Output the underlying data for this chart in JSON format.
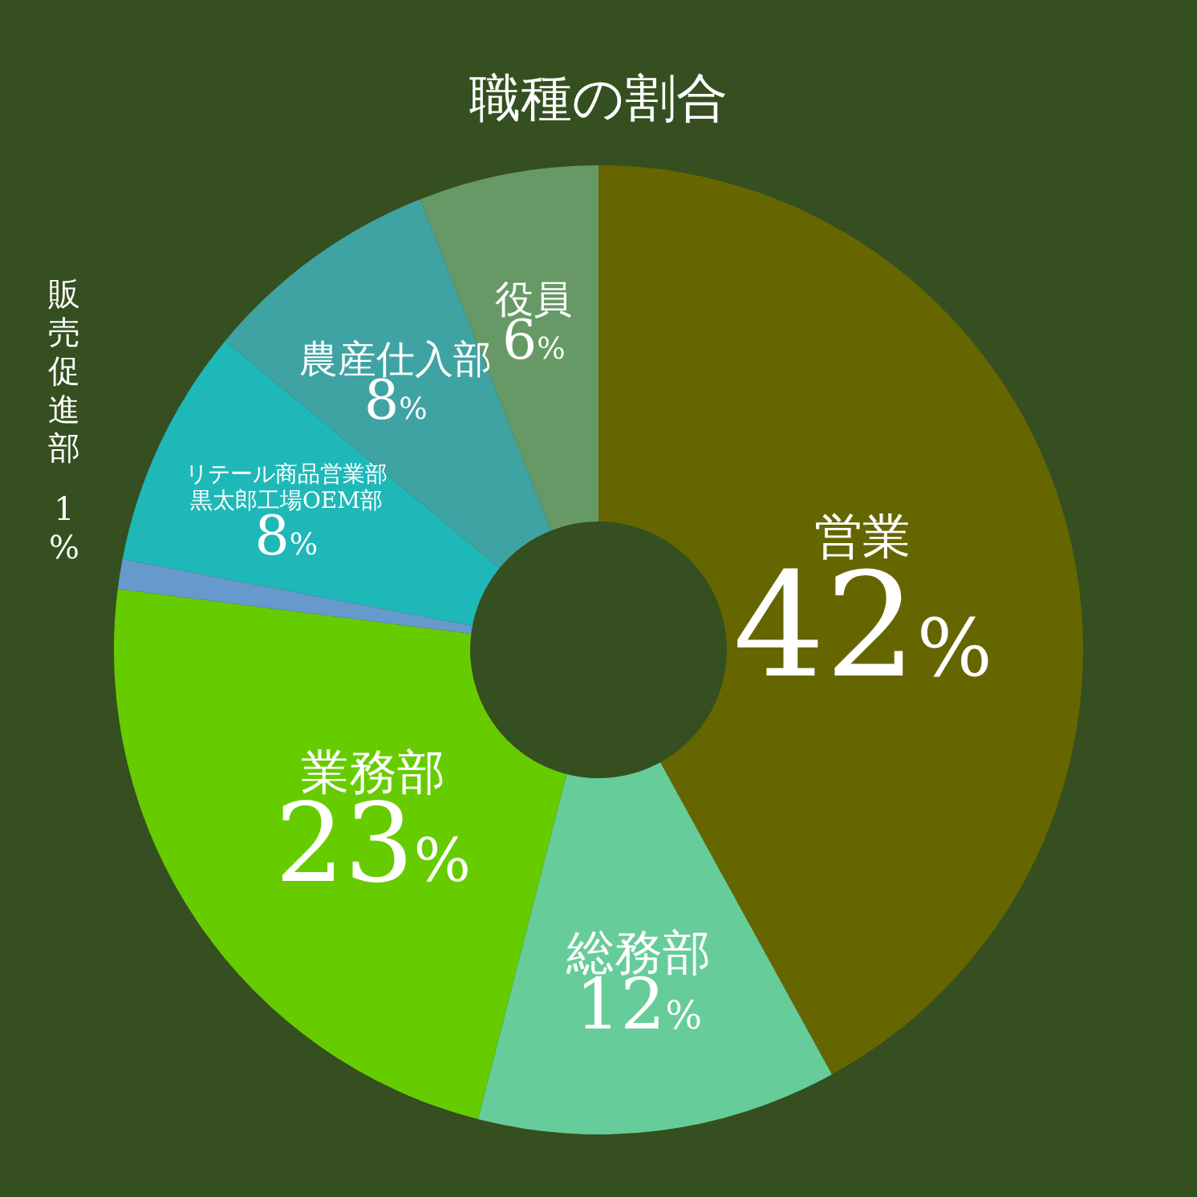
{
  "chart_data": {
    "type": "donut",
    "title": "職種の割合",
    "categories": [
      "営業",
      "総務部",
      "業務部",
      "販売促進部",
      "リテール商品営業部黒太郎工場OEM部",
      "農産仕入部",
      "役員"
    ],
    "values": [
      42,
      12,
      23,
      1,
      8,
      8,
      6
    ],
    "colors": [
      "#666600",
      "#66cc99",
      "#66cc00",
      "#6699cc",
      "#1fb8b8",
      "#40a3a3",
      "#669966"
    ],
    "value_labels": [
      "42%",
      "12%",
      "23%",
      "1%",
      "8%",
      "8%",
      "6%"
    ],
    "data_labels": true
  }
}
